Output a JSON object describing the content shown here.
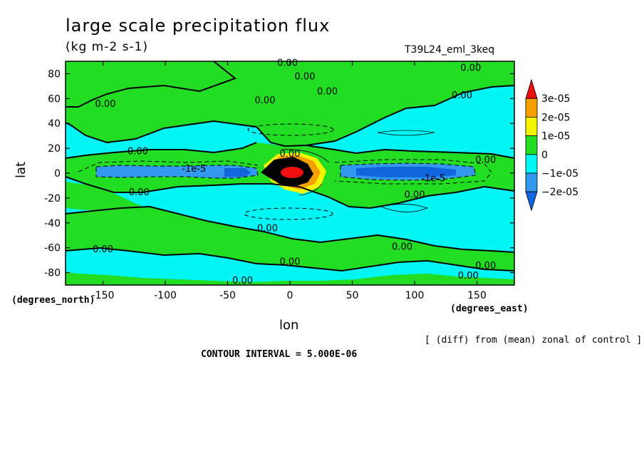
{
  "chart_data": {
    "type": "contour",
    "title": "large scale precipitation flux",
    "units": "(kg m-2 s-1)",
    "experiment": "T39L24_eml_3keq",
    "xlabel": "lon",
    "ylabel": "lat",
    "x_unit_label": "(degrees_east)",
    "y_unit_label": "(degrees_north)",
    "xlim": [
      -180,
      180
    ],
    "ylim": [
      -90,
      90
    ],
    "x_ticks": [
      {
        "value": -150,
        "label": "-150"
      },
      {
        "value": -100,
        "label": "-100"
      },
      {
        "value": -50,
        "label": "-50"
      },
      {
        "value": 0,
        "label": "0"
      },
      {
        "value": 50,
        "label": "50"
      },
      {
        "value": 100,
        "label": "100"
      },
      {
        "value": 150,
        "label": "150"
      }
    ],
    "y_ticks": [
      {
        "value": 80,
        "label": "80"
      },
      {
        "value": 60,
        "label": "60"
      },
      {
        "value": 40,
        "label": "40"
      },
      {
        "value": 20,
        "label": "20"
      },
      {
        "value": 0,
        "label": "0"
      },
      {
        "value": -20,
        "label": "-20"
      },
      {
        "value": -40,
        "label": "-40"
      },
      {
        "value": -60,
        "label": "-60"
      },
      {
        "value": -80,
        "label": "-80"
      }
    ],
    "colorbar": [
      {
        "label": "3e-05",
        "value": 3e-05
      },
      {
        "label": "2e-05",
        "value": 2e-05
      },
      {
        "label": "1e-05",
        "value": 1e-05
      },
      {
        "label": "0",
        "value": 0
      },
      {
        "label": "−1e-05",
        "value": -1e-05
      },
      {
        "label": "−2e-05",
        "value": -2e-05
      }
    ],
    "fill_colors": {
      "above_3e-05": "#ee1010",
      "2e-05_to_3e-05": "#f5a000",
      "1e-05_to_2e-05": "#f5f500",
      "0_to_1e-05": "#22dd22",
      "-1e-05_to_0": "#00f5f5",
      "-2e-05_to_-1e-05": "#3399ee",
      "below_-2e-05": "#1166dd"
    },
    "contour_labels": [
      {
        "text": "0.00",
        "lon": -2,
        "lat": 88
      },
      {
        "text": "0.00",
        "lon": 12,
        "lat": 77
      },
      {
        "text": "0.00",
        "lon": 145,
        "lat": 84
      },
      {
        "text": "0.00",
        "lon": 30,
        "lat": 65
      },
      {
        "text": "0.00",
        "lon": 138,
        "lat": 62
      },
      {
        "text": "0.00",
        "lon": -148,
        "lat": 55
      },
      {
        "text": "0.00",
        "lon": -20,
        "lat": 58
      },
      {
        "text": "0.00",
        "lon": -122,
        "lat": 17
      },
      {
        "text": "0.00",
        "lon": 0,
        "lat": 15
      },
      {
        "text": "0.00",
        "lon": 157,
        "lat": 10
      },
      {
        "text": "-1e-5",
        "lon": -77,
        "lat": 3
      },
      {
        "text": "-1e-5",
        "lon": 115,
        "lat": -5
      },
      {
        "text": "0.00",
        "lon": -121,
        "lat": -16
      },
      {
        "text": "0.00",
        "lon": 100,
        "lat": -18
      },
      {
        "text": "0.00",
        "lon": -18,
        "lat": -45
      },
      {
        "text": "0.00",
        "lon": -150,
        "lat": -62
      },
      {
        "text": "0.00",
        "lon": 90,
        "lat": -60
      },
      {
        "text": "0.00",
        "lon": 0,
        "lat": -72
      },
      {
        "text": "0.00",
        "lon": 157,
        "lat": -75
      },
      {
        "text": "0.00",
        "lon": -38,
        "lat": -87
      },
      {
        "text": "0.00",
        "lon": 143,
        "lat": -83
      }
    ],
    "features": [
      {
        "name": "positive-maximum",
        "lon": [
          -25,
          25
        ],
        "lat": [
          -12,
          12
        ],
        "peak": "above 3e-05"
      },
      {
        "name": "negative-band-west",
        "lon": [
          -165,
          -25
        ],
        "lat": [
          -5,
          5
        ],
        "value": "-1e-05 to -2e-05"
      },
      {
        "name": "negative-band-east",
        "lon": [
          40,
          150
        ],
        "lat": [
          -6,
          6
        ],
        "value": "-1e-05 to -2e-05"
      }
    ]
  },
  "footer": {
    "diff_note": "[ (diff) from (mean) zonal of control ]",
    "contour_interval": "CONTOUR INTERVAL = 5.000E-06"
  }
}
